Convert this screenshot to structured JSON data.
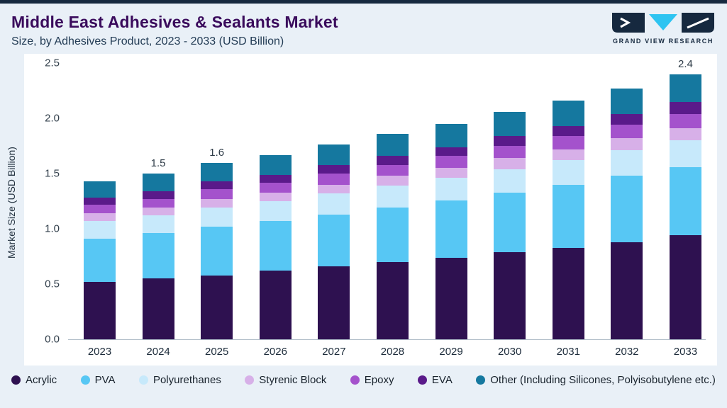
{
  "page": {
    "title": "Middle East Adhesives & Sealants Market",
    "subtitle": "Size, by Adhesives Product, 2023 - 2033 (USD Billion)"
  },
  "logo": {
    "name": "Grand View Research",
    "text": "GRAND VIEW RESEARCH",
    "navy": "#16293f",
    "cyan": "#2ec4f1"
  },
  "chart_data": {
    "type": "bar",
    "stacked": true,
    "title": "Middle East Adhesives & Sealants Market Size, by Adhesives Product, 2023 - 2033 (USD Billion)",
    "xlabel": "",
    "ylabel": "Market Size (USD Billion)",
    "ylim": [
      0,
      2.5
    ],
    "yticks": [
      "0.0",
      "0.5",
      "1.0",
      "1.5",
      "2.0",
      "2.5"
    ],
    "grid": false,
    "legend_position": "bottom",
    "categories": [
      "2023",
      "2024",
      "2025",
      "2026",
      "2027",
      "2028",
      "2029",
      "2030",
      "2031",
      "2032",
      "2033"
    ],
    "series": [
      {
        "name": "Acrylic",
        "color": "#2e1150",
        "values": [
          0.52,
          0.55,
          0.58,
          0.62,
          0.66,
          0.7,
          0.74,
          0.79,
          0.83,
          0.88,
          0.94
        ]
      },
      {
        "name": "PVA",
        "color": "#57c7f4",
        "values": [
          0.39,
          0.41,
          0.44,
          0.45,
          0.47,
          0.49,
          0.52,
          0.54,
          0.57,
          0.6,
          0.62
        ]
      },
      {
        "name": "Polyurethanes",
        "color": "#c7e9fb",
        "values": [
          0.16,
          0.16,
          0.17,
          0.18,
          0.19,
          0.2,
          0.2,
          0.21,
          0.22,
          0.23,
          0.24
        ]
      },
      {
        "name": "Styrenic Block",
        "color": "#d7b0e8",
        "values": [
          0.07,
          0.07,
          0.08,
          0.08,
          0.08,
          0.09,
          0.09,
          0.1,
          0.1,
          0.11,
          0.11
        ]
      },
      {
        "name": "Epoxy",
        "color": "#a452cc",
        "values": [
          0.08,
          0.08,
          0.09,
          0.09,
          0.1,
          0.1,
          0.11,
          0.11,
          0.12,
          0.12,
          0.13
        ]
      },
      {
        "name": "EVA",
        "color": "#5a1a8a",
        "values": [
          0.06,
          0.07,
          0.07,
          0.07,
          0.08,
          0.08,
          0.08,
          0.09,
          0.09,
          0.1,
          0.11
        ]
      },
      {
        "name": "Other (Including Silicones, Polyisobutylene etc.)",
        "color": "#15789f",
        "values": [
          0.15,
          0.16,
          0.17,
          0.18,
          0.18,
          0.2,
          0.21,
          0.22,
          0.23,
          0.23,
          0.25
        ]
      }
    ],
    "totals_labels": {
      "2024": "1.5",
      "2025": "1.6",
      "2033": "2.4"
    }
  }
}
